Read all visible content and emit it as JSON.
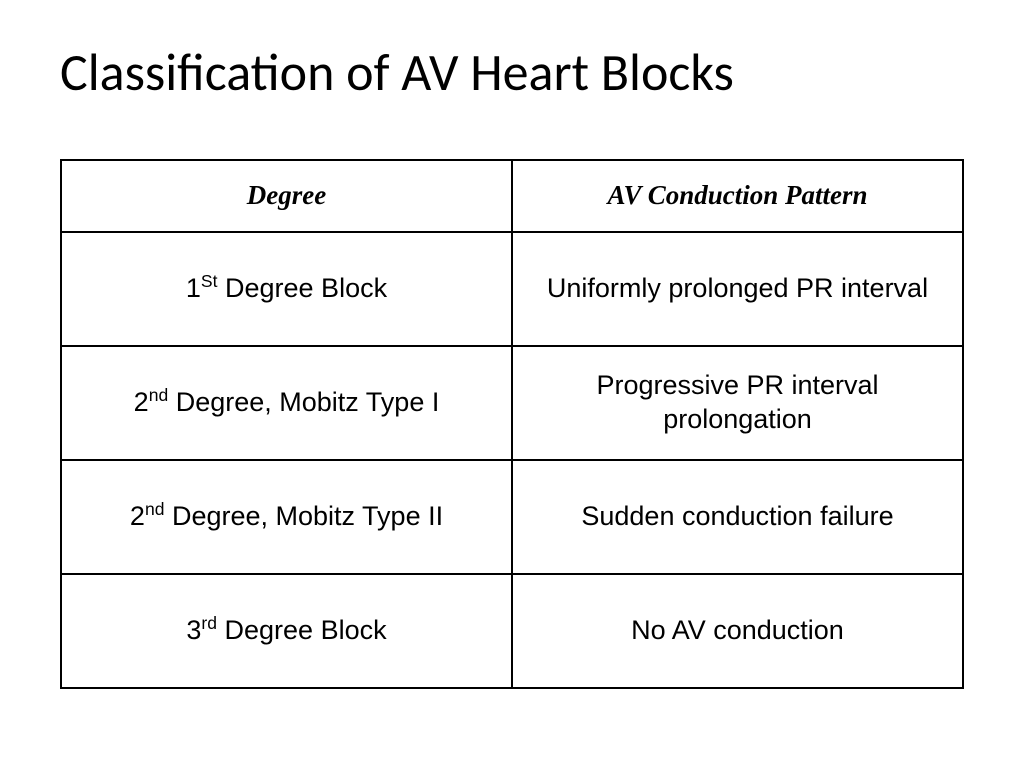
{
  "title": "Classification of AV Heart Blocks",
  "table": {
    "headers": {
      "degree": "Degree",
      "pattern": "AV Conduction Pattern"
    },
    "rows": [
      {
        "degree_prefix": "1",
        "degree_super": "St",
        "degree_suffix": " Degree Block",
        "pattern": "Uniformly prolonged PR interval"
      },
      {
        "degree_prefix": "2",
        "degree_super": "nd",
        "degree_suffix": " Degree, Mobitz Type I",
        "pattern": "Progressive PR interval prolongation"
      },
      {
        "degree_prefix": "2",
        "degree_super": "nd",
        "degree_suffix": " Degree, Mobitz Type II",
        "pattern": "Sudden conduction failure"
      },
      {
        "degree_prefix": "3",
        "degree_super": "rd",
        "degree_suffix": " Degree Block",
        "pattern": "No AV conduction"
      }
    ]
  },
  "style": {
    "background_color": "#ffffff",
    "text_color": "#000000",
    "border_color": "#000000",
    "title_fontsize": 52,
    "header_fontsize": 27,
    "cell_fontsize": 27,
    "title_font": "Calibri",
    "header_font": "Times New Roman",
    "cell_font": "Arial",
    "header_italic": true,
    "header_bold": true
  }
}
